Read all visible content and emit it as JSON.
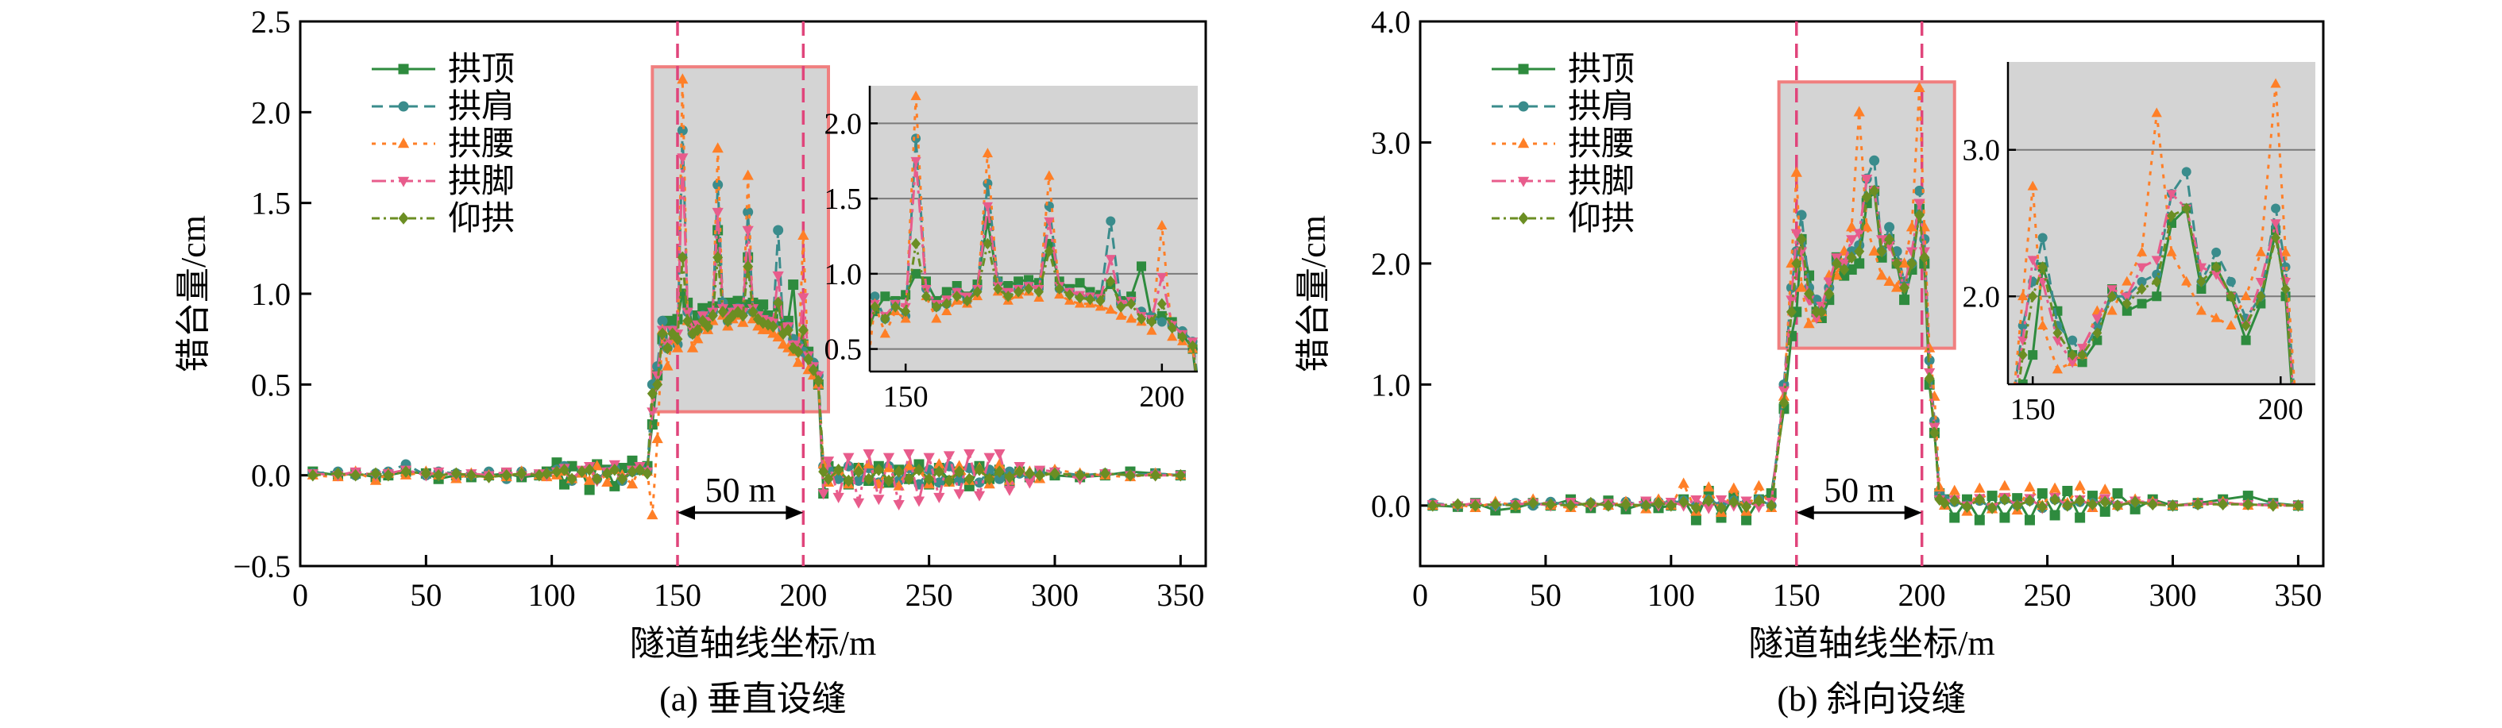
{
  "colors": {
    "arch_crown": "#2e8b3e",
    "arch_shoulder": "#3a8c8c",
    "arch_waist": "#ff7f27",
    "arch_foot": "#e85c8c",
    "invert": "#6b8e23",
    "highlight_fill": "#d4d4d4",
    "highlight_border": "#f07f7f",
    "marker_line": "#e0457b"
  },
  "chart_data": [
    {
      "type": "line",
      "caption": "(a) 垂直设缝",
      "xlabel": "隧道轴线坐标/m",
      "ylabel": "错台量/cm",
      "xlim": [
        0,
        360
      ],
      "ylim": [
        -0.5,
        2.5
      ],
      "xticks": [
        "0",
        "50",
        "100",
        "150",
        "200",
        "250",
        "300",
        "350"
      ],
      "yticks": [
        "−0.5",
        "0.0",
        "0.5",
        "1.0",
        "1.5",
        "2.0",
        "2.5"
      ],
      "dashed_lines_x": [
        150,
        200
      ],
      "span_label": "50 m",
      "highlight_region": {
        "x": [
          140,
          210
        ],
        "y": [
          0.35,
          2.25
        ]
      },
      "inset": {
        "xlim": [
          143,
          207
        ],
        "ylim": [
          0.35,
          2.25
        ],
        "xticks": [
          "150",
          "200"
        ],
        "yticks": [
          "0.5",
          "1.0",
          "1.5",
          "2.0"
        ]
      },
      "x": [
        5,
        15,
        22,
        30,
        35,
        42,
        50,
        55,
        62,
        68,
        75,
        82,
        88,
        95,
        98,
        102,
        105,
        108,
        112,
        115,
        118,
        122,
        125,
        128,
        132,
        135,
        138,
        140,
        142,
        144,
        146,
        148,
        150,
        152,
        154,
        156,
        158,
        160,
        162,
        164,
        166,
        168,
        170,
        172,
        174,
        176,
        178,
        180,
        182,
        184,
        186,
        188,
        190,
        192,
        194,
        196,
        198,
        200,
        202,
        204,
        206,
        208,
        210,
        214,
        218,
        222,
        226,
        230,
        234,
        238,
        242,
        246,
        250,
        254,
        258,
        262,
        266,
        270,
        274,
        278,
        282,
        286,
        290,
        294,
        300,
        310,
        320,
        330,
        340,
        350
      ],
      "series": [
        {
          "name": "拱顶",
          "marker": "square",
          "values": [
            0.02,
            0.0,
            0.01,
            -0.01,
            0.0,
            0.02,
            0.01,
            -0.02,
            0.0,
            -0.01,
            0.0,
            0.01,
            -0.01,
            0.0,
            0.02,
            0.07,
            -0.05,
            0.05,
            0.02,
            -0.08,
            0.06,
            0.03,
            -0.06,
            0.04,
            0.08,
            0.03,
            0.05,
            0.28,
            0.55,
            0.75,
            0.85,
            0.82,
            0.86,
            1.0,
            0.95,
            0.82,
            0.88,
            0.92,
            0.85,
            0.93,
            1.35,
            0.95,
            0.92,
            0.95,
            0.96,
            0.94,
            1.2,
            0.95,
            0.9,
            0.94,
            0.88,
            0.86,
            0.93,
            0.82,
            0.85,
            1.05,
            0.7,
            0.72,
            0.68,
            0.6,
            0.5,
            -0.1,
            0.05,
            0.02,
            -0.05,
            0.04,
            -0.03,
            0.05,
            -0.04,
            0.03,
            -0.02,
            0.06,
            -0.05,
            0.04,
            -0.03,
            0.02,
            -0.06,
            0.05,
            -0.02,
            0.03,
            -0.04,
            0.02,
            -0.01,
            0.02,
            0.0,
            -0.01,
            0.0,
            0.02,
            0.01,
            0.0
          ]
        },
        {
          "name": "拱肩",
          "marker": "circle",
          "values": [
            0.01,
            0.02,
            0.0,
            0.01,
            0.02,
            0.06,
            0.0,
            0.02,
            0.01,
            0.0,
            0.02,
            -0.02,
            0.02,
            0.0,
            0.01,
            0.03,
            0.05,
            -0.03,
            0.02,
            0.04,
            -0.02,
            0.02,
            0.04,
            -0.03,
            0.02,
            0.04,
            0.02,
            0.5,
            0.6,
            0.85,
            0.7,
            0.8,
            0.72,
            1.9,
            0.9,
            0.78,
            0.8,
            0.88,
            0.82,
            0.9,
            1.6,
            0.95,
            0.85,
            0.9,
            0.92,
            0.9,
            1.45,
            0.9,
            0.88,
            0.85,
            0.85,
            0.83,
            1.35,
            0.8,
            0.82,
            0.75,
            0.72,
            0.68,
            0.65,
            0.62,
            0.55,
            0.05,
            0.03,
            -0.02,
            0.05,
            -0.03,
            0.04,
            -0.04,
            0.05,
            -0.03,
            0.04,
            -0.05,
            0.03,
            -0.04,
            0.05,
            -0.03,
            0.04,
            -0.04,
            0.03,
            -0.02,
            0.02,
            0.01,
            0.0,
            0.01,
            0.02,
            0.0,
            0.01,
            0.0,
            0.01,
            0.0
          ]
        },
        {
          "name": "拱腰",
          "marker": "triangle-up",
          "values": [
            0.0,
            -0.01,
            0.02,
            -0.03,
            0.01,
            0.0,
            0.02,
            0.0,
            -0.02,
            0.01,
            0.0,
            -0.01,
            0.02,
            0.0,
            -0.01,
            0.0,
            0.02,
            -0.02,
            0.01,
            -0.03,
            0.05,
            -0.04,
            0.03,
            0.0,
            -0.05,
            0.04,
            0.02,
            -0.22,
            0.2,
            0.8,
            0.6,
            0.75,
            0.7,
            2.18,
            0.85,
            0.7,
            0.75,
            0.82,
            0.8,
            0.85,
            1.8,
            0.88,
            0.82,
            0.86,
            0.88,
            0.84,
            1.65,
            0.86,
            0.82,
            0.8,
            0.8,
            0.78,
            0.76,
            0.72,
            0.7,
            0.68,
            0.62,
            1.32,
            0.58,
            0.55,
            0.5,
            0.06,
            -0.04,
            0.03,
            -0.05,
            0.04,
            0.06,
            -0.05,
            0.04,
            -0.06,
            0.05,
            0.03,
            -0.05,
            0.06,
            -0.04,
            0.05,
            -0.03,
            0.04,
            -0.05,
            0.06,
            -0.03,
            0.04,
            0.02,
            -0.02,
            0.03,
            0.01,
            0.0,
            -0.01,
            0.01,
            0.0
          ]
        },
        {
          "name": "拱脚",
          "marker": "triangle-down",
          "values": [
            0.01,
            0.0,
            0.02,
            0.0,
            0.01,
            0.03,
            0.0,
            0.02,
            0.0,
            0.01,
            0.0,
            0.02,
            0.0,
            0.01,
            0.0,
            0.02,
            0.04,
            -0.02,
            0.03,
            0.05,
            -0.03,
            0.02,
            0.06,
            -0.02,
            0.03,
            0.05,
            0.02,
            0.35,
            0.55,
            0.8,
            0.72,
            0.8,
            0.78,
            1.75,
            0.9,
            0.8,
            0.83,
            0.88,
            0.85,
            0.9,
            1.45,
            0.92,
            0.88,
            0.9,
            0.92,
            0.9,
            1.35,
            0.92,
            0.88,
            0.86,
            0.85,
            0.84,
            1.1,
            0.8,
            0.82,
            0.72,
            0.7,
            0.98,
            0.66,
            0.6,
            0.55,
            -0.1,
            0.08,
            -0.12,
            0.1,
            -0.15,
            0.12,
            -0.13,
            0.1,
            -0.16,
            0.12,
            -0.14,
            0.1,
            -0.12,
            0.11,
            -0.1,
            0.12,
            -0.11,
            0.1,
            0.12,
            -0.08,
            0.05,
            -0.04,
            0.03,
            0.02,
            -0.02,
            0.01,
            0.0,
            0.0,
            0.0
          ]
        },
        {
          "name": "仰拱",
          "marker": "diamond",
          "values": [
            0.0,
            0.01,
            0.0,
            0.01,
            0.0,
            0.02,
            0.01,
            0.0,
            0.01,
            0.0,
            -0.01,
            0.0,
            0.01,
            0.0,
            0.01,
            0.02,
            0.03,
            -0.02,
            0.02,
            0.03,
            -0.02,
            0.01,
            0.03,
            -0.02,
            0.02,
            0.03,
            0.01,
            0.45,
            0.5,
            0.78,
            0.7,
            0.78,
            0.75,
            1.2,
            0.85,
            0.78,
            0.8,
            0.85,
            0.82,
            0.88,
            1.2,
            0.9,
            0.85,
            0.88,
            0.9,
            0.88,
            1.15,
            0.9,
            0.86,
            0.84,
            0.83,
            0.82,
            0.95,
            0.78,
            0.8,
            0.7,
            0.68,
            0.8,
            0.64,
            0.58,
            0.52,
            0.02,
            -0.02,
            0.03,
            -0.03,
            0.02,
            -0.02,
            0.03,
            -0.03,
            0.02,
            -0.02,
            0.03,
            -0.02,
            0.02,
            -0.03,
            0.02,
            -0.02,
            0.03,
            -0.02,
            0.02,
            -0.01,
            0.02,
            0.01,
            0.0,
            0.01,
            0.0,
            0.01,
            0.0,
            0.0,
            0.0
          ]
        }
      ]
    },
    {
      "type": "line",
      "caption": "(b) 斜向设缝",
      "xlabel": "隧道轴线坐标/m",
      "ylabel": "错台量/cm",
      "xlim": [
        0,
        360
      ],
      "ylim": [
        -0.5,
        4.0
      ],
      "xticks": [
        "0",
        "50",
        "100",
        "150",
        "200",
        "250",
        "300",
        "350"
      ],
      "yticks": [
        "0.0",
        "1.0",
        "2.0",
        "3.0",
        "4.0"
      ],
      "dashed_lines_x": [
        150,
        200
      ],
      "span_label": "50 m",
      "highlight_region": {
        "x": [
          143,
          213
        ],
        "y": [
          1.3,
          3.5
        ]
      },
      "inset": {
        "xlim": [
          145,
          207
        ],
        "ylim": [
          1.4,
          3.6
        ],
        "xticks": [
          "150",
          "200"
        ],
        "yticks": [
          "2.0",
          "3.0"
        ]
      },
      "x": [
        5,
        15,
        22,
        30,
        38,
        45,
        52,
        60,
        68,
        75,
        82,
        90,
        95,
        100,
        105,
        110,
        115,
        120,
        125,
        130,
        135,
        140,
        145,
        148,
        150,
        152,
        155,
        158,
        160,
        163,
        166,
        169,
        172,
        175,
        178,
        181,
        184,
        187,
        190,
        193,
        196,
        199,
        201,
        203,
        205,
        207,
        209,
        213,
        218,
        223,
        228,
        233,
        238,
        243,
        248,
        253,
        258,
        263,
        268,
        273,
        278,
        285,
        292,
        300,
        310,
        320,
        330,
        340,
        350
      ],
      "series": [
        {
          "name": "拱顶",
          "marker": "square",
          "values": [
            0.0,
            -0.01,
            0.02,
            -0.04,
            -0.02,
            0.02,
            0.0,
            0.05,
            -0.02,
            0.04,
            -0.03,
            0.02,
            -0.02,
            0.0,
            0.05,
            -0.12,
            0.12,
            -0.1,
            0.08,
            -0.12,
            0.05,
            0.1,
            0.8,
            1.4,
            1.6,
            2.2,
            1.9,
            1.6,
            1.55,
            1.7,
            2.05,
            1.9,
            1.95,
            2.0,
            2.5,
            2.6,
            2.05,
            2.2,
            2.0,
            1.7,
            1.95,
            2.45,
            2.0,
            1.0,
            0.6,
            0.1,
            0.05,
            -0.1,
            0.05,
            -0.12,
            0.08,
            -0.1,
            0.06,
            -0.12,
            0.1,
            -0.08,
            0.12,
            -0.1,
            0.08,
            -0.05,
            0.1,
            -0.03,
            0.05,
            0.0,
            0.02,
            0.05,
            0.08,
            0.02,
            0.0
          ]
        },
        {
          "name": "拱肩",
          "marker": "circle",
          "values": [
            0.02,
            0.0,
            0.01,
            0.0,
            0.02,
            0.0,
            0.03,
            0.0,
            0.02,
            0.0,
            0.03,
            0.0,
            0.03,
            0.02,
            0.04,
            0.0,
            0.05,
            0.0,
            0.04,
            0.02,
            0.05,
            0.0,
            1.0,
            1.8,
            2.1,
            2.4,
            1.8,
            1.7,
            1.6,
            1.8,
            2.0,
            2.0,
            2.1,
            2.15,
            2.7,
            2.85,
            2.1,
            2.3,
            2.1,
            1.85,
            2.0,
            2.6,
            2.2,
            1.2,
            0.7,
            0.1,
            0.05,
            0.03,
            0.0,
            0.04,
            -0.02,
            0.05,
            0.0,
            0.04,
            -0.02,
            0.05,
            0.0,
            0.03,
            0.02,
            0.04,
            0.0,
            0.03,
            0.02,
            0.0,
            0.01,
            0.02,
            0.01,
            0.01,
            0.0
          ]
        },
        {
          "name": "拱腰",
          "marker": "triangle-up",
          "values": [
            0.0,
            0.01,
            -0.02,
            0.03,
            0.0,
            0.05,
            0.0,
            -0.02,
            0.02,
            0.0,
            0.03,
            -0.03,
            0.05,
            0.0,
            0.18,
            -0.05,
            0.15,
            -0.06,
            0.14,
            -0.05,
            0.16,
            -0.02,
            0.9,
            2.0,
            2.75,
            1.8,
            1.5,
            1.55,
            1.6,
            1.9,
            1.9,
            2.1,
            2.3,
            3.25,
            2.3,
            2.1,
            1.9,
            1.85,
            1.8,
            2.0,
            2.3,
            3.45,
            2.3,
            1.3,
            0.9,
            0.15,
            0.0,
            0.12,
            -0.05,
            0.14,
            -0.03,
            0.16,
            -0.04,
            0.15,
            0.0,
            0.14,
            0.02,
            0.16,
            -0.02,
            0.13,
            0.0,
            0.05,
            0.03,
            0.0,
            0.02,
            0.03,
            0.0,
            0.01,
            0.0
          ]
        },
        {
          "name": "拱脚",
          "marker": "triangle-down",
          "values": [
            0.01,
            0.0,
            0.02,
            0.0,
            0.01,
            0.02,
            0.0,
            0.03,
            0.0,
            0.02,
            0.0,
            0.04,
            0.0,
            0.03,
            0.0,
            0.05,
            -0.02,
            0.05,
            0.0,
            0.04,
            -0.01,
            0.03,
            0.95,
            1.7,
            2.25,
            2.1,
            1.7,
            1.55,
            1.65,
            1.85,
            2.05,
            2.0,
            2.2,
            2.25,
            2.7,
            2.6,
            2.2,
            2.15,
            2.0,
            1.8,
            2.1,
            2.5,
            2.1,
            1.1,
            0.65,
            0.05,
            0.02,
            0.05,
            0.0,
            0.06,
            -0.02,
            0.07,
            0.0,
            0.06,
            -0.02,
            0.07,
            0.0,
            0.05,
            0.0,
            0.06,
            0.0,
            0.04,
            0.02,
            0.0,
            0.01,
            0.02,
            0.01,
            0.0,
            0.0
          ]
        },
        {
          "name": "仰拱",
          "marker": "diamond",
          "values": [
            0.0,
            0.01,
            0.0,
            0.01,
            0.0,
            0.02,
            0.01,
            0.0,
            0.02,
            0.0,
            0.01,
            0.0,
            0.02,
            0.0,
            0.03,
            -0.02,
            0.04,
            -0.02,
            0.03,
            -0.01,
            0.04,
            0.0,
            0.85,
            1.6,
            2.0,
            2.2,
            1.75,
            1.6,
            1.6,
            1.75,
            2.0,
            1.95,
            2.05,
            2.1,
            2.55,
            2.6,
            2.1,
            2.2,
            2.0,
            1.8,
            2.0,
            2.4,
            2.05,
            1.05,
            0.6,
            0.05,
            0.02,
            0.04,
            -0.01,
            0.05,
            -0.02,
            0.05,
            0.0,
            0.04,
            -0.01,
            0.05,
            0.0,
            0.04,
            0.01,
            0.03,
            0.0,
            0.03,
            0.01,
            0.0,
            0.01,
            0.01,
            0.01,
            0.0,
            0.0
          ]
        }
      ]
    }
  ]
}
